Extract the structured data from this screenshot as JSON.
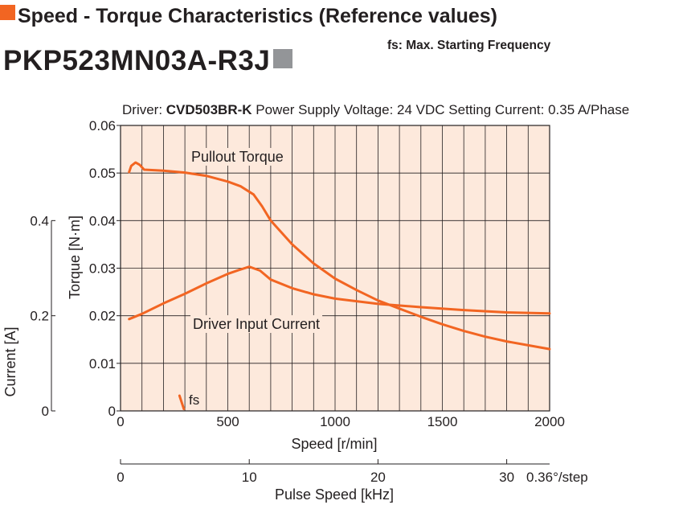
{
  "header": {
    "title": "Speed - Torque Characteristics (Reference values)",
    "fs_note": "fs: Max. Starting Frequency",
    "model": "PKP523MN03A-R3J"
  },
  "driver_line": {
    "driver_label": "Driver: ",
    "driver_model": "CVD503BR-K",
    "supply": " Power Supply Voltage: 24 VDC",
    "current": " Setting Current: 0.35 A/Phase"
  },
  "colors": {
    "curve": "#f26522",
    "plot_bg": "#fde9dc",
    "header_square": "#f26522",
    "model_square": "#939598"
  },
  "chart_data": {
    "type": "line",
    "xlabel": "Speed [r/min]",
    "ylabel": "Torque [N·m]",
    "y2label": "Current [A]",
    "x2label": "Pulse Speed [kHz]",
    "x2_unit": "0.36°/step",
    "xlim": [
      0,
      2000
    ],
    "ylim": [
      0,
      0.06
    ],
    "y2lim": [
      0,
      0.6
    ],
    "x_ticks": [
      0,
      500,
      1000,
      1500,
      2000
    ],
    "y_ticks": [
      "0",
      "0.01",
      "0.02",
      "0.03",
      "0.04",
      "0.05",
      "0.06"
    ],
    "y2_ticks": [
      "0",
      "0.2",
      "0.4"
    ],
    "x2_ticks": [
      0,
      10,
      20,
      30
    ],
    "grid": true,
    "series": [
      {
        "name": "Pullout Torque",
        "x": [
          40,
          50,
          70,
          90,
          110,
          200,
          300,
          400,
          500,
          560,
          620,
          660,
          700,
          800,
          900,
          1000,
          1100,
          1200,
          1300,
          1400,
          1500,
          1600,
          1700,
          1800,
          1900,
          2000
        ],
        "y": [
          0.0502,
          0.0515,
          0.0522,
          0.0517,
          0.0507,
          0.0505,
          0.0501,
          0.0494,
          0.0482,
          0.0472,
          0.0455,
          0.043,
          0.04,
          0.035,
          0.031,
          0.0278,
          0.0254,
          0.0232,
          0.0215,
          0.0198,
          0.0182,
          0.0168,
          0.0156,
          0.0146,
          0.0138,
          0.013
        ]
      },
      {
        "name": "Driver Input Current",
        "x": [
          40,
          100,
          200,
          300,
          400,
          500,
          550,
          600,
          650,
          700,
          800,
          900,
          1000,
          1200,
          1400,
          1600,
          1800,
          2000
        ],
        "y": [
          0.193,
          0.204,
          0.226,
          0.246,
          0.268,
          0.288,
          0.296,
          0.303,
          0.295,
          0.276,
          0.258,
          0.245,
          0.236,
          0.225,
          0.218,
          0.212,
          0.207,
          0.205
        ]
      },
      {
        "name": "fs",
        "x": [
          275,
          295
        ],
        "y": [
          0.0032,
          0.0004
        ]
      }
    ]
  }
}
